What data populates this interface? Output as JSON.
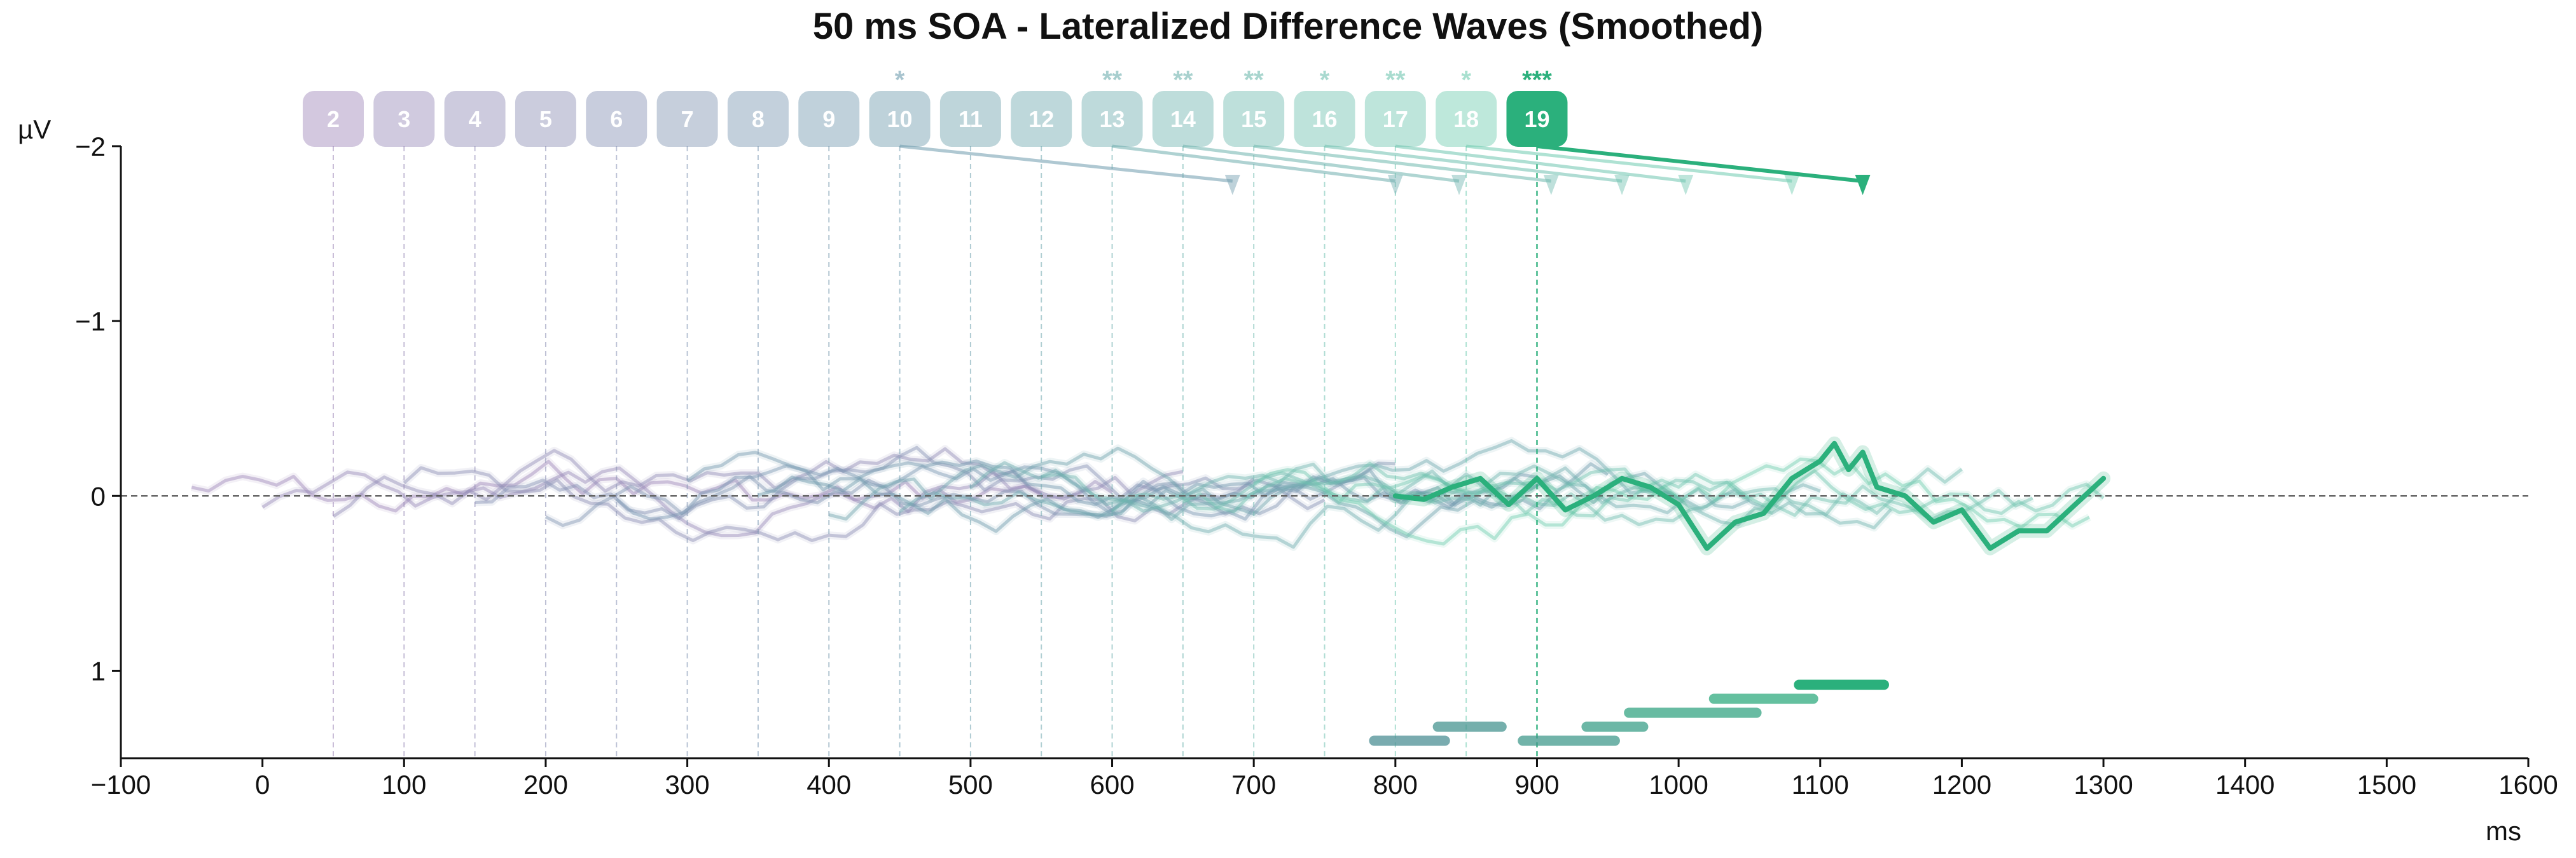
{
  "chart_data": {
    "type": "line",
    "title": "50 ms SOA - Lateralized Difference Waves (Smoothed)",
    "xlabel": "ms",
    "ylabel": "µV",
    "xlim": [
      -100,
      1600
    ],
    "ylim": [
      1.5,
      -2.0
    ],
    "y_inverted": true,
    "xticks": [
      -100,
      0,
      100,
      200,
      300,
      400,
      500,
      600,
      700,
      800,
      900,
      1000,
      1100,
      1200,
      1300,
      1400,
      1500,
      1600
    ],
    "yticks": [
      -2,
      -1,
      0,
      1
    ],
    "ytick_labels": [
      "−2",
      "−1",
      "0",
      "1"
    ],
    "zero_line": true,
    "highlighted_series": "19",
    "colors": {
      "early": "#9d86b8",
      "mid": "#6e9cae",
      "late": "#6fccb0",
      "highlight": "#2bb07c",
      "bar_dark": "#4d8f95"
    },
    "markers": [
      {
        "label": "2",
        "onset": 50,
        "sig": "",
        "arrow_to": null
      },
      {
        "label": "3",
        "onset": 100,
        "sig": "",
        "arrow_to": null
      },
      {
        "label": "4",
        "onset": 150,
        "sig": "",
        "arrow_to": null
      },
      {
        "label": "5",
        "onset": 200,
        "sig": "",
        "arrow_to": null
      },
      {
        "label": "6",
        "onset": 250,
        "sig": "",
        "arrow_to": null
      },
      {
        "label": "7",
        "onset": 300,
        "sig": "",
        "arrow_to": null
      },
      {
        "label": "8",
        "onset": 350,
        "sig": "",
        "arrow_to": null
      },
      {
        "label": "9",
        "onset": 400,
        "sig": "",
        "arrow_to": null
      },
      {
        "label": "10",
        "onset": 450,
        "sig": "*",
        "arrow_to": 685
      },
      {
        "label": "11",
        "onset": 500,
        "sig": "",
        "arrow_to": null
      },
      {
        "label": "12",
        "onset": 550,
        "sig": "",
        "arrow_to": null
      },
      {
        "label": "13",
        "onset": 600,
        "sig": "**",
        "arrow_to": 800
      },
      {
        "label": "14",
        "onset": 650,
        "sig": "**",
        "arrow_to": 845
      },
      {
        "label": "15",
        "onset": 700,
        "sig": "**",
        "arrow_to": 910
      },
      {
        "label": "16",
        "onset": 750,
        "sig": "*",
        "arrow_to": 960
      },
      {
        "label": "17",
        "onset": 800,
        "sig": "**",
        "arrow_to": 1005
      },
      {
        "label": "18",
        "onset": 850,
        "sig": "*",
        "arrow_to": 1080
      },
      {
        "label": "19",
        "onset": 900,
        "sig": "***",
        "arrow_to": 1130
      }
    ],
    "significance_bars": [
      {
        "start": 785,
        "end": 835,
        "y": 1.4
      },
      {
        "start": 830,
        "end": 875,
        "y": 1.32
      },
      {
        "start": 890,
        "end": 955,
        "y": 1.4
      },
      {
        "start": 935,
        "end": 975,
        "y": 1.32
      },
      {
        "start": 965,
        "end": 1055,
        "y": 1.24
      },
      {
        "start": 1025,
        "end": 1095,
        "y": 1.16
      },
      {
        "start": 1085,
        "end": 1145,
        "y": 1.08
      }
    ],
    "series": [
      {
        "name": "19",
        "x": [
          800,
          820,
          840,
          860,
          880,
          900,
          920,
          940,
          960,
          980,
          1000,
          1020,
          1040,
          1060,
          1080,
          1100,
          1110,
          1120,
          1130,
          1140,
          1160,
          1180,
          1200,
          1220,
          1240,
          1260,
          1280,
          1300
        ],
        "y": [
          0,
          0.02,
          -0.05,
          -0.1,
          0.05,
          -0.1,
          0.08,
          0,
          -0.1,
          -0.05,
          0.05,
          0.3,
          0.15,
          0.1,
          -0.1,
          -0.2,
          -0.3,
          -0.15,
          -0.25,
          -0.05,
          0,
          0.15,
          0.08,
          0.3,
          0.2,
          0.2,
          0.05,
          -0.1
        ]
      }
    ]
  }
}
